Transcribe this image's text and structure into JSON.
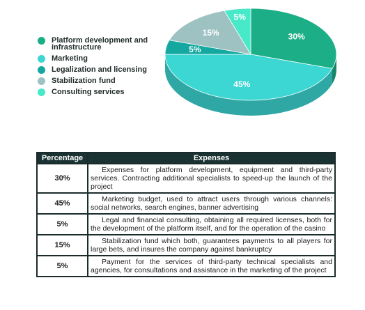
{
  "chart_data": {
    "type": "pie",
    "legend_position": "left",
    "categories": [
      "Platform development and infrastructure",
      "Marketing",
      "Legalization and licensing",
      "Stabilization fund",
      "Consulting services"
    ],
    "values": [
      30,
      45,
      5,
      15,
      5
    ],
    "labels": [
      "30%",
      "45%",
      "5%",
      "15%",
      "5%"
    ],
    "colors": [
      "#1cae86",
      "#3cd7d3",
      "#15a8a0",
      "#9ec2c2",
      "#48e9c9"
    ],
    "three_d": true
  },
  "table": {
    "headers": [
      "Percentage",
      "Expenses"
    ],
    "rows": [
      {
        "pct": "30%",
        "text": "Expenses for platform development, equipment and third-party services. Contracting additional specialists to speed-up the launch of the project"
      },
      {
        "pct": "45%",
        "text": "Marketing budget, used to attract users through various channels: social networks, search engines, banner advertising"
      },
      {
        "pct": "5%",
        "text": "Legal and financial consulting, obtaining all required licenses, both for the development of the platform itself, and for the operation of the casino"
      },
      {
        "pct": "15%",
        "text": "Stabilization fund which both, guarantees payments to all players for large bets, and insures the company against bankruptcy"
      },
      {
        "pct": "5%",
        "text": "Payment for the services of third-party technical specialists and agencies, for consultations and assistance in the marketing of the project"
      }
    ]
  }
}
